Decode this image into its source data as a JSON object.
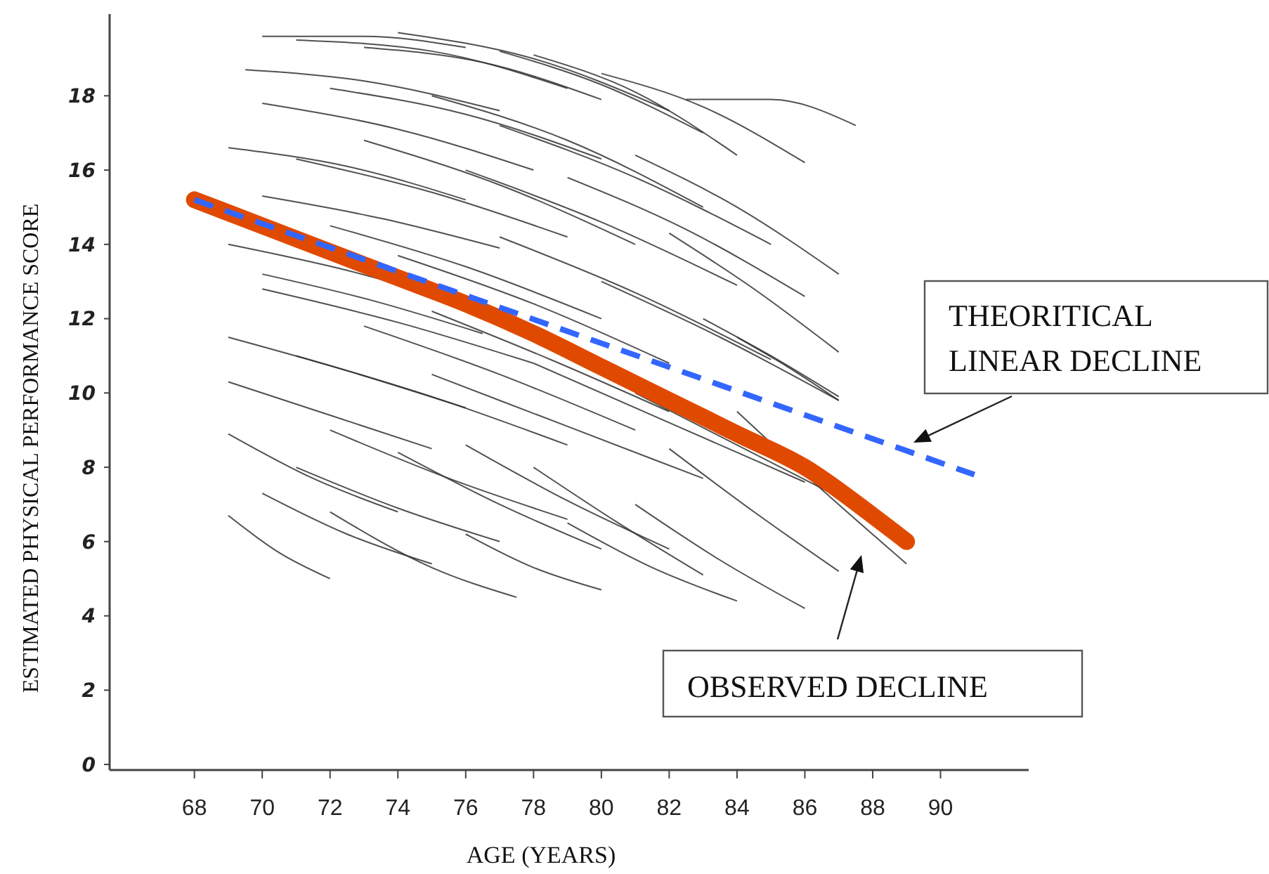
{
  "chart_data": {
    "type": "line",
    "xlabel": "AGE (YEARS)",
    "ylabel": "ESTIMATED PHYSICAL PERFORMANCE SCORE",
    "xlim": [
      65.5,
      92.6
    ],
    "xticks": [
      68,
      70,
      72,
      74,
      76,
      78,
      80,
      82,
      84,
      86,
      88,
      90
    ],
    "ylim": [
      -0.15,
      20.2
    ],
    "yticks": [
      0,
      2,
      4,
      6,
      8,
      10,
      12,
      14,
      16,
      18
    ],
    "grid": false,
    "marker": "none",
    "line_style": "solid",
    "series": [
      {
        "color": "#333333",
        "x": [
          70,
          73,
          76
        ],
        "values": [
          19.6,
          19.6,
          19.3
        ]
      },
      {
        "color": "#333333",
        "x": [
          71,
          75,
          79
        ],
        "values": [
          19.5,
          19.2,
          18.2
        ]
      },
      {
        "color": "#333333",
        "x": [
          74,
          78,
          82
        ],
        "values": [
          19.7,
          19.0,
          17.6
        ]
      },
      {
        "color": "#333333",
        "x": [
          78,
          81,
          84
        ],
        "values": [
          19.1,
          18.1,
          16.4
        ]
      },
      {
        "color": "#333333",
        "x": [
          82.5,
          85,
          87.5
        ],
        "values": [
          17.9,
          17.9,
          17.2
        ]
      },
      {
        "color": "#333333",
        "x": [
          80,
          83,
          86
        ],
        "values": [
          18.6,
          17.7,
          16.2
        ]
      },
      {
        "color": "#333333",
        "x": [
          69.5,
          73,
          77
        ],
        "values": [
          18.7,
          18.4,
          17.6
        ]
      },
      {
        "color": "#333333",
        "x": [
          70,
          74,
          78
        ],
        "values": [
          17.8,
          17.1,
          16.0
        ]
      },
      {
        "color": "#333333",
        "x": [
          72,
          76,
          80
        ],
        "values": [
          18.2,
          17.5,
          16.3
        ]
      },
      {
        "color": "#333333",
        "x": [
          75,
          79,
          83
        ],
        "values": [
          18.0,
          16.8,
          15.0
        ]
      },
      {
        "color": "#333333",
        "x": [
          77,
          81,
          85
        ],
        "values": [
          17.2,
          15.8,
          14.0
        ]
      },
      {
        "color": "#333333",
        "x": [
          69,
          72.5,
          76
        ],
        "values": [
          16.6,
          16.1,
          15.2
        ]
      },
      {
        "color": "#333333",
        "x": [
          71,
          75,
          79
        ],
        "values": [
          16.3,
          15.4,
          14.2
        ]
      },
      {
        "color": "#333333",
        "x": [
          73,
          77,
          81
        ],
        "values": [
          16.8,
          15.6,
          14.0
        ]
      },
      {
        "color": "#333333",
        "x": [
          76,
          80,
          84
        ],
        "values": [
          16.0,
          14.6,
          12.9
        ]
      },
      {
        "color": "#333333",
        "x": [
          79,
          82.5,
          86
        ],
        "values": [
          15.8,
          14.4,
          12.6
        ]
      },
      {
        "color": "#333333",
        "x": [
          81,
          84,
          87
        ],
        "values": [
          16.4,
          15.0,
          13.2
        ]
      },
      {
        "color": "#333333",
        "x": [
          69,
          72.5,
          76
        ],
        "values": [
          14.0,
          13.3,
          12.4
        ]
      },
      {
        "color": "#333333",
        "x": [
          70,
          74,
          78
        ],
        "values": [
          12.8,
          11.9,
          10.8
        ]
      },
      {
        "color": "#333333",
        "x": [
          72,
          76,
          80
        ],
        "values": [
          14.5,
          13.4,
          12.0
        ]
      },
      {
        "color": "#333333",
        "x": [
          74,
          78,
          82
        ],
        "values": [
          13.7,
          12.4,
          10.8
        ]
      },
      {
        "color": "#333333",
        "x": [
          77,
          81,
          85
        ],
        "values": [
          14.2,
          12.7,
          10.9
        ]
      },
      {
        "color": "#333333",
        "x": [
          80,
          83.5,
          87
        ],
        "values": [
          13.0,
          11.5,
          9.8
        ]
      },
      {
        "color": "#333333",
        "x": [
          83,
          85,
          87
        ],
        "values": [
          12.0,
          11.0,
          9.9
        ]
      },
      {
        "color": "#333333",
        "x": [
          69,
          72.5,
          76
        ],
        "values": [
          11.5,
          10.6,
          9.6
        ]
      },
      {
        "color": "#333333",
        "x": [
          69,
          72,
          75
        ],
        "values": [
          10.3,
          9.4,
          8.5
        ]
      },
      {
        "color": "#333333",
        "x": [
          71,
          75,
          79
        ],
        "values": [
          11.0,
          9.9,
          8.6
        ]
      },
      {
        "color": "#333333",
        "x": [
          73,
          77,
          81
        ],
        "values": [
          11.8,
          10.5,
          9.0
        ]
      },
      {
        "color": "#333333",
        "x": [
          75,
          79,
          83
        ],
        "values": [
          10.5,
          9.1,
          7.7
        ]
      },
      {
        "color": "#333333",
        "x": [
          78,
          82,
          86
        ],
        "values": [
          10.8,
          9.2,
          7.6
        ]
      },
      {
        "color": "#333333",
        "x": [
          81,
          84,
          87
        ],
        "values": [
          10.0,
          8.6,
          7.2
        ]
      },
      {
        "color": "#333333",
        "x": [
          84,
          86.5,
          89
        ],
        "values": [
          9.5,
          7.4,
          5.4
        ]
      },
      {
        "color": "#333333",
        "x": [
          69,
          71.5,
          74
        ],
        "values": [
          8.9,
          7.7,
          6.8
        ]
      },
      {
        "color": "#333333",
        "x": [
          69,
          70.5,
          72
        ],
        "values": [
          6.7,
          5.7,
          5.0
        ]
      },
      {
        "color": "#333333",
        "x": [
          70,
          72.5,
          75
        ],
        "values": [
          7.3,
          6.2,
          5.4
        ]
      },
      {
        "color": "#333333",
        "x": [
          71,
          74,
          77
        ],
        "values": [
          8.0,
          6.9,
          6.0
        ]
      },
      {
        "color": "#333333",
        "x": [
          72,
          75.5,
          79
        ],
        "values": [
          9.0,
          7.7,
          6.6
        ]
      },
      {
        "color": "#333333",
        "x": [
          74,
          77,
          80
        ],
        "values": [
          8.4,
          7.0,
          5.8
        ]
      },
      {
        "color": "#333333",
        "x": [
          72,
          75,
          77.5
        ],
        "values": [
          6.8,
          5.3,
          4.5
        ]
      },
      {
        "color": "#333333",
        "x": [
          76,
          79,
          82
        ],
        "values": [
          8.6,
          7.1,
          5.8
        ]
      },
      {
        "color": "#333333",
        "x": [
          78,
          80.5,
          83
        ],
        "values": [
          8.0,
          6.5,
          5.1
        ]
      },
      {
        "color": "#333333",
        "x": [
          79,
          81.5,
          84
        ],
        "values": [
          6.5,
          5.3,
          4.4
        ]
      },
      {
        "color": "#333333",
        "x": [
          81,
          83.5,
          86
        ],
        "values": [
          7.0,
          5.5,
          4.2
        ]
      },
      {
        "color": "#333333",
        "x": [
          82,
          84.5,
          87
        ],
        "values": [
          8.5,
          6.8,
          5.2
        ]
      },
      {
        "color": "#333333",
        "x": [
          76,
          78,
          80
        ],
        "values": [
          6.2,
          5.3,
          4.7
        ]
      },
      {
        "color": "#333333",
        "x": [
          70,
          73.5,
          77
        ],
        "values": [
          15.3,
          14.7,
          13.9
        ]
      },
      {
        "color": "#333333",
        "x": [
          75,
          78.5,
          82
        ],
        "values": [
          12.2,
          10.9,
          9.5
        ]
      },
      {
        "color": "#333333",
        "x": [
          82,
          84.5,
          87
        ],
        "values": [
          14.3,
          12.8,
          11.1
        ]
      },
      {
        "color": "#333333",
        "x": [
          84,
          85.5,
          87
        ],
        "values": [
          11.5,
          10.7,
          9.8
        ]
      },
      {
        "color": "#333333",
        "x": [
          73,
          76.5,
          80
        ],
        "values": [
          19.3,
          18.9,
          17.9
        ]
      },
      {
        "color": "#333333",
        "x": [
          77,
          80,
          83
        ],
        "values": [
          19.2,
          18.3,
          17.0
        ]
      },
      {
        "color": "#333333",
        "x": [
          70,
          73.2,
          76.5
        ],
        "values": [
          13.2,
          12.5,
          11.6
        ]
      },
      {
        "color": "#e04a00",
        "x": [
          68,
          70,
          72,
          74,
          76,
          78,
          80,
          82,
          84,
          86,
          88,
          89
        ],
        "values": [
          15.2,
          14.5,
          13.8,
          13.1,
          12.4,
          11.6,
          10.7,
          9.8,
          8.9,
          8.0,
          6.7,
          6.0
        ]
      },
      {
        "color": "#3366ff",
        "line_style": "dashed",
        "x": [
          68,
          91
        ],
        "values": [
          15.2,
          7.8
        ]
      }
    ],
    "annotations": [
      "THEORITICAL\nLINEAR DECLINE",
      "OBSERVED DECLINE"
    ]
  }
}
